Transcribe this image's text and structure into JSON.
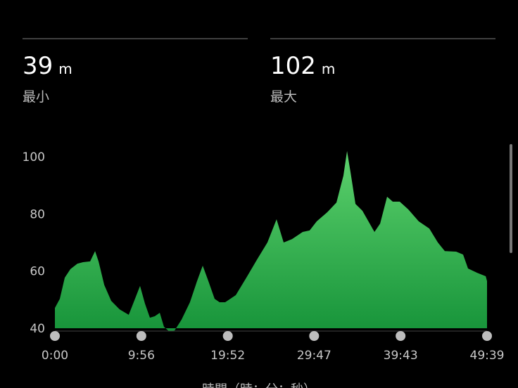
{
  "stats": [
    {
      "value": "39",
      "unit": "m",
      "label": "最小"
    },
    {
      "value": "102",
      "unit": "m",
      "label": "最大"
    }
  ],
  "chart_data": {
    "type": "area",
    "x_label": "時間（時：分：秒）",
    "color_top": "#5dd26d",
    "color_bottom": "#17943a",
    "x": [
      0,
      34,
      68,
      107,
      155,
      194,
      243,
      277,
      301,
      340,
      388,
      446,
      509,
      543,
      587,
      621,
      655,
      689,
      723,
      752,
      786,
      825,
      873,
      931,
      980,
      1019,
      1058,
      1101,
      1135,
      1174,
      1247,
      1320,
      1392,
      1465,
      1528,
      1577,
      1635,
      1708,
      1756,
      1805,
      1878,
      1941,
      1989,
      2014,
      2038,
      2072,
      2120,
      2203,
      2242,
      2290,
      2329,
      2377,
      2436,
      2508,
      2581,
      2640,
      2688,
      2766,
      2814,
      2848,
      2911,
      2970,
      2979
    ],
    "values": [
      47.1,
      50.3,
      57.7,
      60.7,
      62.6,
      63.1,
      63.4,
      67.0,
      63.4,
      55.2,
      49.6,
      46.6,
      44.7,
      49.1,
      54.8,
      48.6,
      43.7,
      44.2,
      45.4,
      40.5,
      39,
      39.2,
      43.0,
      49.1,
      56.5,
      61.9,
      56.5,
      50.3,
      49.1,
      49.1,
      51.6,
      57.7,
      63.9,
      70.0,
      78.1,
      70.0,
      71.2,
      73.7,
      74.2,
      77.4,
      80.6,
      84.0,
      93.4,
      102,
      94.6,
      83.5,
      81.1,
      73.7,
      76.6,
      86.0,
      84.3,
      84.3,
      81.6,
      77.4,
      74.9,
      70.0,
      67.0,
      66.8,
      65.8,
      60.9,
      59.4,
      58.2,
      56.5
    ],
    "xlim": [
      0,
      2979
    ],
    "xticks": [
      {
        "value": 0,
        "label": "0:00"
      },
      {
        "value": 596,
        "label": "9:56"
      },
      {
        "value": 1192,
        "label": "19:52"
      },
      {
        "value": 1787,
        "label": "29:47"
      },
      {
        "value": 2383,
        "label": "39:43"
      },
      {
        "value": 2979,
        "label": "49:39"
      }
    ],
    "ylim": [
      40,
      100
    ],
    "yticks": [
      40,
      60,
      80,
      100
    ]
  }
}
